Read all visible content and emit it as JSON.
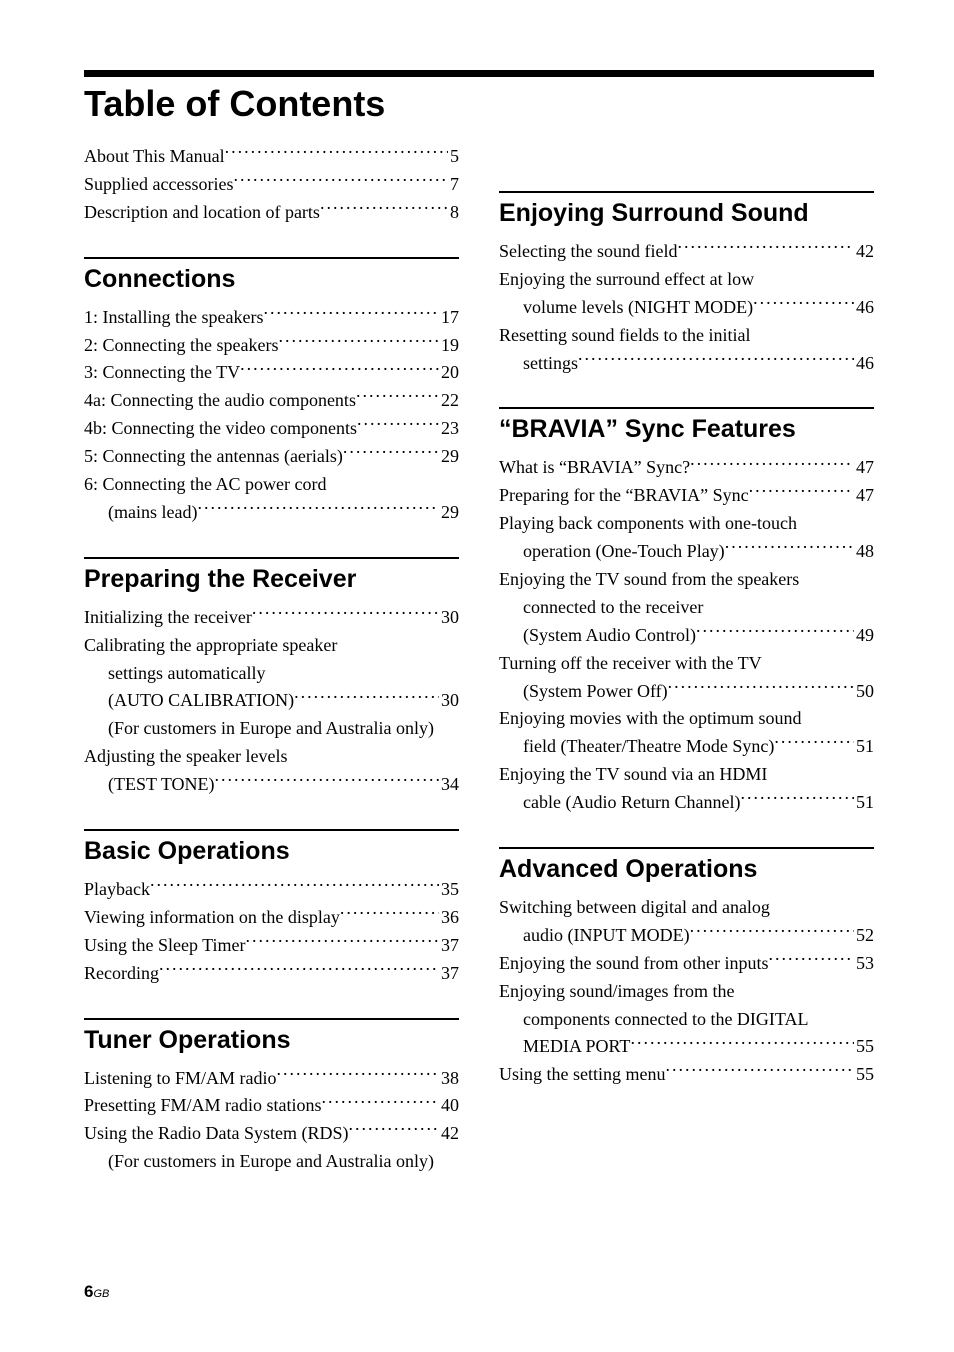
{
  "title": "Table of Contents",
  "intro": [
    {
      "text": "About This Manual",
      "page": "5"
    },
    {
      "text": "Supplied accessories",
      "page": "7"
    },
    {
      "text": "Description and location of parts",
      "page": "8"
    }
  ],
  "left_sections": [
    {
      "heading": "Connections",
      "items": [
        {
          "text": "1: Installing the speakers",
          "page": "17"
        },
        {
          "text": "2: Connecting the speakers",
          "page": "19"
        },
        {
          "text": "3: Connecting the TV",
          "page": "20"
        },
        {
          "text": "4a: Connecting the audio components",
          "page": "22"
        },
        {
          "text": "4b: Connecting the video components",
          "page": "23"
        },
        {
          "text": "5: Connecting the antennas (aerials)",
          "page": "29"
        },
        {
          "text": "6: Connecting the AC power cord",
          "cont": "(mains lead)",
          "page": "29"
        }
      ]
    },
    {
      "heading": "Preparing the Receiver",
      "items": [
        {
          "text": "Initializing the receiver",
          "page": "30"
        },
        {
          "text": "Calibrating the appropriate speaker",
          "cont": "settings automatically",
          "cont2": "(AUTO CALIBRATION)",
          "page": "30"
        },
        {
          "note": "(For customers in Europe and Australia only)"
        },
        {
          "text": "Adjusting the speaker levels",
          "cont": "(TEST TONE)",
          "page": "34"
        }
      ]
    },
    {
      "heading": "Basic Operations",
      "items": [
        {
          "text": "Playback",
          "page": "35"
        },
        {
          "text": "Viewing information on the display",
          "page": "36"
        },
        {
          "text": "Using the Sleep Timer",
          "page": "37"
        },
        {
          "text": "Recording",
          "page": "37"
        }
      ]
    },
    {
      "heading": "Tuner Operations",
      "items": [
        {
          "text": "Listening to FM/AM radio",
          "page": "38"
        },
        {
          "text": "Presetting FM/AM radio stations",
          "page": "40"
        },
        {
          "text": "Using the Radio Data System (RDS)",
          "page": "42"
        },
        {
          "note": "(For customers in Europe and Australia only)"
        }
      ]
    }
  ],
  "right_sections": [
    {
      "heading": "Enjoying Surround Sound",
      "items": [
        {
          "text": "Selecting the sound field",
          "page": "42"
        },
        {
          "text": "Enjoying the surround effect at low",
          "cont": "volume levels (NIGHT MODE)",
          "page": "46"
        },
        {
          "text": "Resetting sound fields to the initial",
          "cont": "settings",
          "page": "46"
        }
      ]
    },
    {
      "heading": "“BRAVIA” Sync Features",
      "items": [
        {
          "text": "What is “BRAVIA” Sync?",
          "page": "47"
        },
        {
          "text": "Preparing for the “BRAVIA” Sync",
          "page": "47"
        },
        {
          "text": "Playing back components with one-touch",
          "cont": "operation (One-Touch Play)",
          "page": "48"
        },
        {
          "text": "Enjoying the TV sound from the speakers",
          "cont": "connected to the receiver",
          "cont2": "(System Audio Control)",
          "page": "49"
        },
        {
          "text": "Turning off the receiver with the TV",
          "cont": "(System Power Off)",
          "page": "50"
        },
        {
          "text": "Enjoying movies with the optimum sound",
          "cont": "field (Theater/Theatre Mode Sync)",
          "page": "51"
        },
        {
          "text": "Enjoying the TV sound via an HDMI",
          "cont": "cable (Audio Return Channel)",
          "page": "51"
        }
      ]
    },
    {
      "heading": "Advanced Operations",
      "items": [
        {
          "text": "Switching between digital and analog",
          "cont": "audio (INPUT MODE)",
          "page": "52"
        },
        {
          "text": "Enjoying the sound from other inputs",
          "page": "53"
        },
        {
          "text": "Enjoying sound/images from the",
          "cont": "components connected to the DIGITAL",
          "cont2": "MEDIA PORT",
          "page": "55"
        },
        {
          "text": "Using the setting menu",
          "page": "55"
        }
      ]
    }
  ],
  "footer_page": "6",
  "footer_region": "GB"
}
